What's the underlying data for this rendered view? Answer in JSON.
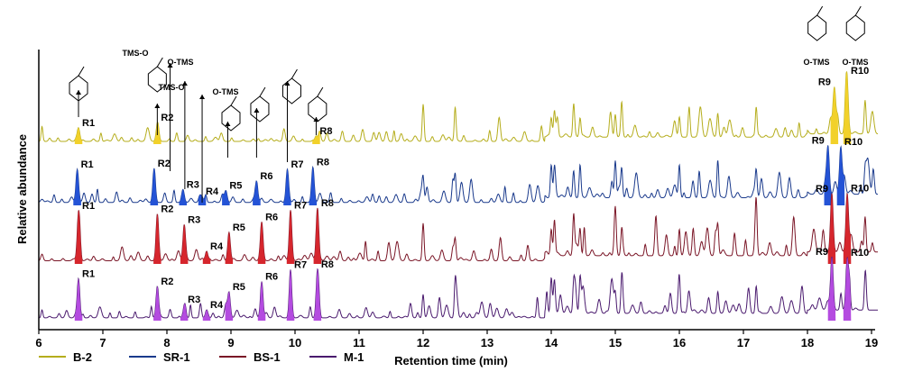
{
  "chart_data": {
    "type": "line",
    "title": "",
    "xlabel": "Retention time (min)",
    "ylabel": "Relative abundance",
    "xlim": [
      6,
      19.1
    ],
    "x_ticks": [
      "6",
      "7",
      "8",
      "9",
      "10",
      "11",
      "12",
      "13",
      "14",
      "15",
      "16",
      "17",
      "18",
      "19"
    ],
    "grid": false,
    "legend_position": "bottom-left",
    "series": [
      {
        "name": "B-2",
        "color": "#b5ad1c",
        "peak_color": "#f2d12a",
        "peaks": [
          {
            "label": "R1",
            "x": 6.62,
            "h": 0.25
          },
          {
            "label": "R2",
            "x": 7.85,
            "h": 0.22
          },
          {
            "label": "R8",
            "x": 10.33,
            "h": 0.1
          },
          {
            "label": "R9",
            "x": 18.42,
            "h": 0.85
          },
          {
            "label": "R10",
            "x": 18.62,
            "h": 0.8
          }
        ]
      },
      {
        "name": "SR-1",
        "color": "#1a3a8c",
        "peak_color": "#2453d6",
        "peaks": [
          {
            "label": "R1",
            "x": 6.6,
            "h": 0.55
          },
          {
            "label": "R2",
            "x": 7.8,
            "h": 0.55
          },
          {
            "label": "R3",
            "x": 8.25,
            "h": 0.12
          },
          {
            "label": "R4",
            "x": 8.55,
            "h": 0.08
          },
          {
            "label": "R5",
            "x": 8.92,
            "h": 0.2
          },
          {
            "label": "R6",
            "x": 9.4,
            "h": 0.35
          },
          {
            "label": "R7",
            "x": 9.88,
            "h": 0.55
          },
          {
            "label": "R8",
            "x": 10.28,
            "h": 0.55
          },
          {
            "label": "R9",
            "x": 18.32,
            "h": 0.82
          },
          {
            "label": "R10",
            "x": 18.52,
            "h": 0.8
          }
        ]
      },
      {
        "name": "BS-1",
        "color": "#7a1526",
        "peak_color": "#d6262d",
        "peaks": [
          {
            "label": "R1",
            "x": 6.62,
            "h": 0.75
          },
          {
            "label": "R2",
            "x": 7.85,
            "h": 0.72
          },
          {
            "label": "R3",
            "x": 8.27,
            "h": 0.55
          },
          {
            "label": "R4",
            "x": 8.62,
            "h": 0.15
          },
          {
            "label": "R5",
            "x": 8.97,
            "h": 0.45
          },
          {
            "label": "R6",
            "x": 9.48,
            "h": 0.5
          },
          {
            "label": "R7",
            "x": 9.93,
            "h": 0.78
          },
          {
            "label": "R8",
            "x": 10.35,
            "h": 0.82
          },
          {
            "label": "R9",
            "x": 18.38,
            "h": 0.9
          },
          {
            "label": "R10",
            "x": 18.62,
            "h": 0.92
          }
        ]
      },
      {
        "name": "M-1",
        "color": "#4a1a6e",
        "peak_color": "#b44be0",
        "peaks": [
          {
            "label": "R1",
            "x": 6.62,
            "h": 0.7
          },
          {
            "label": "R2",
            "x": 7.85,
            "h": 0.55
          },
          {
            "label": "R3",
            "x": 8.27,
            "h": 0.18
          },
          {
            "label": "R4",
            "x": 8.62,
            "h": 0.1
          },
          {
            "label": "R5",
            "x": 8.97,
            "h": 0.45
          },
          {
            "label": "R6",
            "x": 9.48,
            "h": 0.65
          },
          {
            "label": "R7",
            "x": 9.93,
            "h": 0.75
          },
          {
            "label": "R8",
            "x": 10.35,
            "h": 0.82
          },
          {
            "label": "R9",
            "x": 18.38,
            "h": 0.9
          },
          {
            "label": "R10",
            "x": 18.62,
            "h": 0.92
          }
        ]
      }
    ],
    "annotations": {
      "structure_labels": [
        "TMS-O",
        "O-TMS",
        "TMS-O",
        "O-TMS",
        "O-TMS",
        "O-TMS"
      ]
    }
  }
}
